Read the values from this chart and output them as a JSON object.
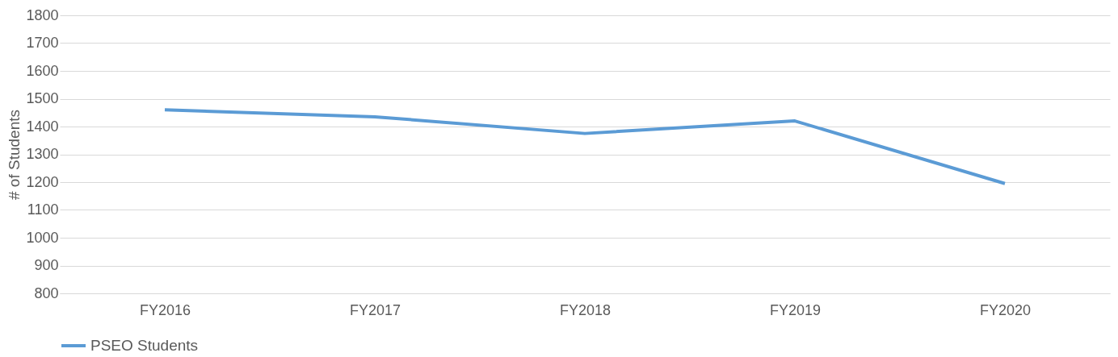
{
  "chart_data": {
    "type": "line",
    "ylabel": "# of Students",
    "categories": [
      "FY2016",
      "FY2017",
      "FY2018",
      "FY2019",
      "FY2020"
    ],
    "series": [
      {
        "name": "PSEO Students",
        "color": "#5b9bd5",
        "values": [
          1460,
          1435,
          1375,
          1420,
          1195
        ]
      }
    ],
    "ylim": [
      800,
      1800
    ],
    "yticks": [
      800,
      900,
      1000,
      1100,
      1200,
      1300,
      1400,
      1500,
      1600,
      1700,
      1800
    ],
    "grid": "y",
    "legend": "bottom",
    "marker": "none",
    "line_style": "solid"
  }
}
